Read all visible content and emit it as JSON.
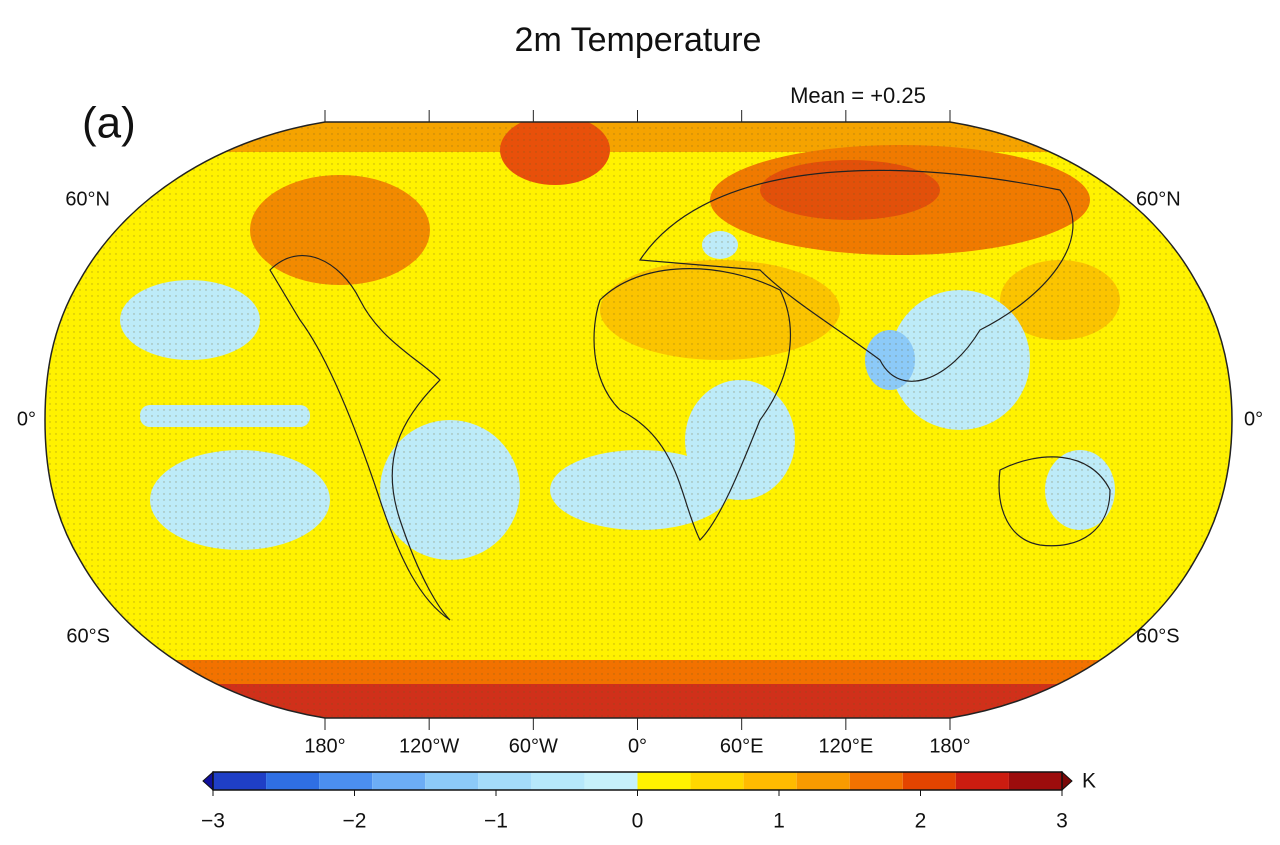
{
  "title": "2m Temperature",
  "panel_label": "(a)",
  "annotation": "Mean = +0.25",
  "lat_labels_left": [
    "60°N",
    "0°",
    "60°S"
  ],
  "lat_labels_right": [
    "60°N",
    "0°",
    "60°S"
  ],
  "lon_labels": [
    "180°",
    "120°W",
    "60°W",
    "0°",
    "60°E",
    "120°E",
    "180°"
  ],
  "colorbar": {
    "lim": [
      -3,
      3
    ],
    "ticks": [
      {
        "value": -3,
        "label": "−3"
      },
      {
        "value": -2,
        "label": "−2"
      },
      {
        "value": -1,
        "label": "−1"
      },
      0,
      1,
      2,
      3
    ],
    "levels": [
      -3,
      -2.625,
      -2.25,
      -1.875,
      -1.5,
      -1.125,
      -0.75,
      -0.375,
      0,
      0.375,
      0.75,
      1.125,
      1.5,
      1.875,
      2.25,
      2.625,
      3
    ],
    "colors": [
      "#1f3fc6",
      "#2f6fe4",
      "#4b8fef",
      "#6cadf5",
      "#8ccaf8",
      "#a4dcfa",
      "#b6e8fb",
      "#c6f1fb",
      "#fff200",
      "#ffd800",
      "#ffbb00",
      "#f99b00",
      "#f27200",
      "#e44400",
      "#cc1c10",
      "#9c0c0c"
    ],
    "extend_colors": [
      "#10109c",
      "#7a0808"
    ],
    "unit": "K"
  }
}
